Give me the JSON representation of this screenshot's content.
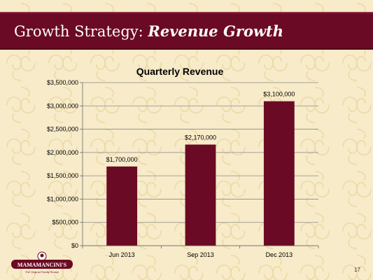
{
  "slide": {
    "title_prefix": "Growth Strategy: ",
    "title_emphasis": "Revenue Growth",
    "page_number": "17",
    "logo_text": "MAMAMANCINI'S",
    "logo_tagline": "The Original Family Recipe",
    "theme_color": "#6b0a24",
    "background_color": "#f7ebc9"
  },
  "chart_data": {
    "type": "bar",
    "title": "Quarterly Revenue",
    "categories": [
      "Jun 2013",
      "Sep 2013",
      "Dec 2013"
    ],
    "values": [
      1700000,
      2170000,
      3100000
    ],
    "data_labels": [
      "$1,700,000",
      "$2,170,000",
      "$3,100,000"
    ],
    "y_ticks": [
      0,
      500000,
      1000000,
      1500000,
      2000000,
      2500000,
      3000000,
      3500000
    ],
    "y_tick_labels": [
      "$0",
      "$500,000",
      "$1,000,000",
      "$1,500,000",
      "$2,000,000",
      "$2,500,000",
      "$3,000,000",
      "$3,500,000"
    ],
    "ylim": [
      0,
      3500000
    ],
    "grid": true,
    "bar_color": "#6b0a24",
    "xlabel": "",
    "ylabel": ""
  }
}
